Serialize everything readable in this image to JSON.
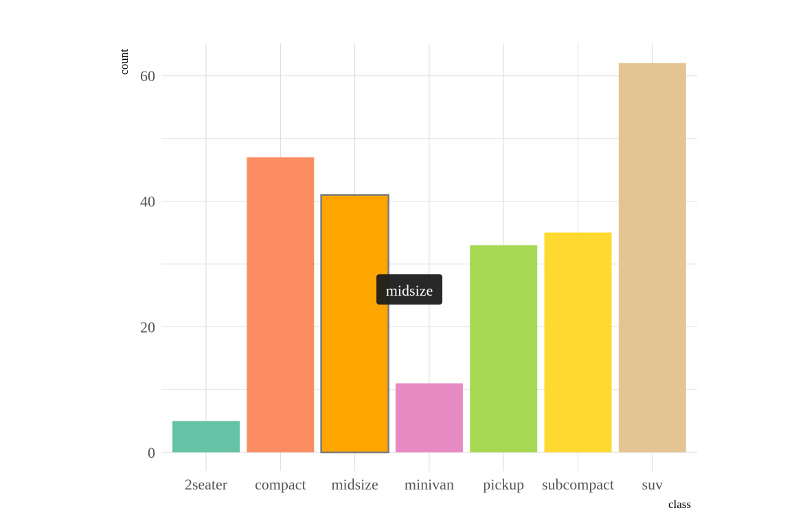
{
  "chart_data": {
    "type": "bar",
    "title": "",
    "xlabel": "class",
    "ylabel": "count",
    "categories": [
      "2seater",
      "compact",
      "midsize",
      "minivan",
      "pickup",
      "subcompact",
      "suv"
    ],
    "values": [
      5,
      47,
      41,
      11,
      33,
      35,
      62
    ],
    "colors": [
      "#66c2a5",
      "#fc8d62",
      "#ffa500",
      "#e78ac3",
      "#a6d854",
      "#ffd92f",
      "#e5c494"
    ],
    "highlight_index": 2,
    "highlight_stroke": "#7a7a7a",
    "ylim": [
      0,
      65
    ],
    "yticks": [
      0,
      20,
      40,
      60
    ],
    "grid": true,
    "legend": "none",
    "tooltip": {
      "text": "midsize",
      "background": "#1c1c1c",
      "category_index": 2
    }
  }
}
